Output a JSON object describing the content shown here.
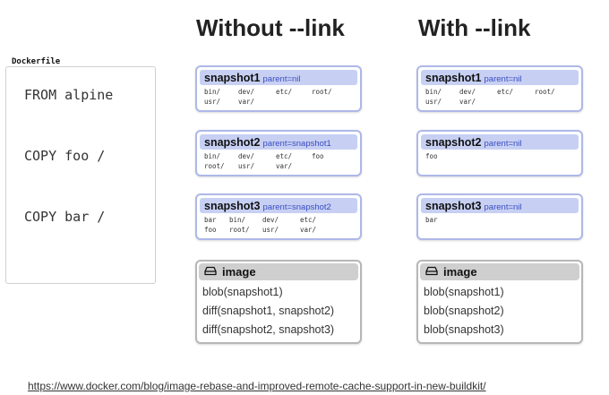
{
  "headings": {
    "without": "Without --link",
    "with": "With --link"
  },
  "dockerfile": {
    "label": "Dockerfile",
    "lines": [
      "FROM alpine",
      "COPY foo /",
      "COPY bar /"
    ]
  },
  "without_link": {
    "snapshots": [
      {
        "name": "snapshot1",
        "parent": "parent=nil",
        "rows": [
          [
            "bin/",
            "dev/",
            "etc/",
            "root/"
          ],
          [
            "usr/",
            "var/"
          ]
        ]
      },
      {
        "name": "snapshot2",
        "parent": "parent=snapshot1",
        "rows": [
          [
            "bin/",
            "dev/",
            "etc/",
            "foo"
          ],
          [
            "root/",
            "usr/",
            "var/"
          ]
        ]
      },
      {
        "name": "snapshot3",
        "parent": "parent=snapshot2",
        "rows": [
          [
            "bar",
            "bin/",
            "dev/",
            "etc/"
          ],
          [
            "foo",
            "root/",
            "usr/",
            "var/"
          ]
        ]
      }
    ],
    "image": {
      "title": "image",
      "lines": [
        "blob(snapshot1)",
        "diff(snapshot1, snapshot2)",
        "diff(snapshot2, snapshot3)"
      ]
    }
  },
  "with_link": {
    "snapshots": [
      {
        "name": "snapshot1",
        "parent": "parent=nil",
        "rows": [
          [
            "bin/",
            "dev/",
            "etc/",
            "root/"
          ],
          [
            "usr/",
            "var/"
          ]
        ]
      },
      {
        "name": "snapshot2",
        "parent": "parent=nil",
        "rows": [
          [
            "foo"
          ]
        ]
      },
      {
        "name": "snapshot3",
        "parent": "parent=nil",
        "rows": [
          [
            "bar"
          ]
        ]
      }
    ],
    "image": {
      "title": "image",
      "lines": [
        "blob(snapshot1)",
        "blob(snapshot2)",
        "blob(snapshot3)"
      ]
    }
  },
  "source_url": "https://www.docker.com/blog/image-rebase-and-improved-remote-cache-support-in-new-buildkit/"
}
